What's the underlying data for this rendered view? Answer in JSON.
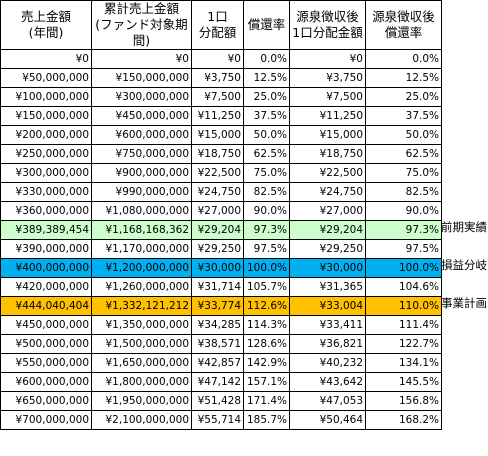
{
  "headers": [
    [
      "売上金額",
      "(年間)"
    ],
    [
      "累計売上金額",
      "(ファンド対象期間)"
    ],
    [
      "1口",
      "分配額"
    ],
    [
      "償還率"
    ],
    [
      "源泉徴収後",
      "1口分配金額"
    ],
    [
      "源泉徴収後",
      "償還率"
    ]
  ],
  "rows": [
    {
      "cells": [
        "¥0",
        "¥0",
        "¥0",
        "0.0%",
        "¥0",
        "0.0%"
      ],
      "highlight": "",
      "side_label": ""
    },
    {
      "cells": [
        "¥50,000,000",
        "¥150,000,000",
        "¥3,750",
        "12.5%",
        "¥3,750",
        "12.5%"
      ],
      "highlight": "",
      "side_label": ""
    },
    {
      "cells": [
        "¥100,000,000",
        "¥300,000,000",
        "¥7,500",
        "25.0%",
        "¥7,500",
        "25.0%"
      ],
      "highlight": "",
      "side_label": ""
    },
    {
      "cells": [
        "¥150,000,000",
        "¥450,000,000",
        "¥11,250",
        "37.5%",
        "¥11,250",
        "37.5%"
      ],
      "highlight": "",
      "side_label": ""
    },
    {
      "cells": [
        "¥200,000,000",
        "¥600,000,000",
        "¥15,000",
        "50.0%",
        "¥15,000",
        "50.0%"
      ],
      "highlight": "",
      "side_label": ""
    },
    {
      "cells": [
        "¥250,000,000",
        "¥750,000,000",
        "¥18,750",
        "62.5%",
        "¥18,750",
        "62.5%"
      ],
      "highlight": "",
      "side_label": ""
    },
    {
      "cells": [
        "¥300,000,000",
        "¥900,000,000",
        "¥22,500",
        "75.0%",
        "¥22,500",
        "75.0%"
      ],
      "highlight": "",
      "side_label": ""
    },
    {
      "cells": [
        "¥330,000,000",
        "¥990,000,000",
        "¥24,750",
        "82.5%",
        "¥24,750",
        "82.5%"
      ],
      "highlight": "",
      "side_label": ""
    },
    {
      "cells": [
        "¥360,000,000",
        "¥1,080,000,000",
        "¥27,000",
        "90.0%",
        "¥27,000",
        "90.0%"
      ],
      "highlight": "",
      "side_label": ""
    },
    {
      "cells": [
        "¥389,389,454",
        "¥1,168,168,362",
        "¥29,204",
        "97.3%",
        "¥29,204",
        "97.3%"
      ],
      "highlight": "green",
      "side_label": "前期実績"
    },
    {
      "cells": [
        "¥390,000,000",
        "¥1,170,000,000",
        "¥29,250",
        "97.5%",
        "¥29,250",
        "97.5%"
      ],
      "highlight": "",
      "side_label": ""
    },
    {
      "cells": [
        "¥400,000,000",
        "¥1,200,000,000",
        "¥30,000",
        "100.0%",
        "¥30,000",
        "100.0%"
      ],
      "highlight": "blue",
      "side_label": "損益分岐"
    },
    {
      "cells": [
        "¥420,000,000",
        "¥1,260,000,000",
        "¥31,714",
        "105.7%",
        "¥31,365",
        "104.6%"
      ],
      "highlight": "",
      "side_label": ""
    },
    {
      "cells": [
        "¥444,040,404",
        "¥1,332,121,212",
        "¥33,774",
        "112.6%",
        "¥33,004",
        "110.0%"
      ],
      "highlight": "orange",
      "side_label": "事業計画"
    },
    {
      "cells": [
        "¥450,000,000",
        "¥1,350,000,000",
        "¥34,285",
        "114.3%",
        "¥33,411",
        "111.4%"
      ],
      "highlight": "",
      "side_label": ""
    },
    {
      "cells": [
        "¥500,000,000",
        "¥1,500,000,000",
        "¥38,571",
        "128.6%",
        "¥36,821",
        "122.7%"
      ],
      "highlight": "",
      "side_label": ""
    },
    {
      "cells": [
        "¥550,000,000",
        "¥1,650,000,000",
        "¥42,857",
        "142.9%",
        "¥40,232",
        "134.1%"
      ],
      "highlight": "",
      "side_label": ""
    },
    {
      "cells": [
        "¥600,000,000",
        "¥1,800,000,000",
        "¥47,142",
        "157.1%",
        "¥43,642",
        "145.5%"
      ],
      "highlight": "",
      "side_label": ""
    },
    {
      "cells": [
        "¥650,000,000",
        "¥1,950,000,000",
        "¥51,428",
        "171.4%",
        "¥47,053",
        "156.8%"
      ],
      "highlight": "",
      "side_label": ""
    },
    {
      "cells": [
        "¥700,000,000",
        "¥2,100,000,000",
        "¥55,714",
        "185.7%",
        "¥50,464",
        "168.2%"
      ],
      "highlight": "",
      "side_label": ""
    }
  ]
}
